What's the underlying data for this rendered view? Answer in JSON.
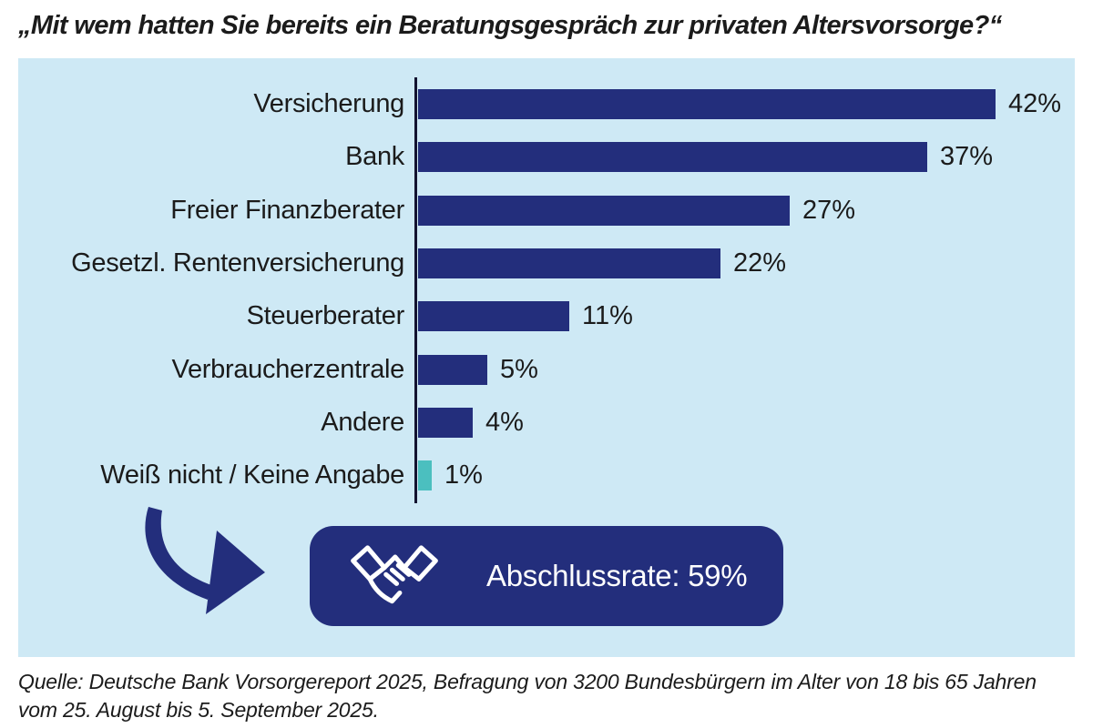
{
  "title": "„Mit wem hatten Sie bereits ein Beratungsgespräch zur privaten Altersvorsorge?“",
  "chart_data": {
    "type": "bar",
    "orientation": "horizontal",
    "categories": [
      "Versicherung",
      "Bank",
      "Freier Finanzberater",
      "Gesetzl. Rentenversicherung",
      "Steuerberater",
      "Verbraucherzentrale",
      "Andere",
      "Weiß nicht / Keine Angabe"
    ],
    "values": [
      42,
      37,
      27,
      22,
      11,
      5,
      4,
      1
    ],
    "value_labels": [
      "42%",
      "37%",
      "27%",
      "22%",
      "11%",
      "5%",
      "4%",
      "1%"
    ],
    "xlim": [
      0,
      45
    ],
    "grid": false,
    "legend": false,
    "bar_colors": [
      "#232e7c",
      "#232e7c",
      "#232e7c",
      "#232e7c",
      "#232e7c",
      "#232e7c",
      "#232e7c",
      "#4bbfbf"
    ]
  },
  "callout": {
    "icon": "handshake-icon",
    "label": "Abschlussrate: 59%"
  },
  "source": {
    "line1": "Quelle: Deutsche Bank Vorsorgereport 2025, Befragung von 3200 Bundesbürgern im Alter von 18 bis 65 Jahren",
    "line2": "vom 25. August bis 5. September 2025."
  },
  "colors": {
    "panel_background": "#cee9f5",
    "bar_navy": "#232e7c",
    "bar_highlight_teal": "#4bbfbf",
    "callout_background": "#232e7c",
    "callout_text": "#ffffff",
    "text": "#1b1b1b",
    "axis": "#131330"
  }
}
